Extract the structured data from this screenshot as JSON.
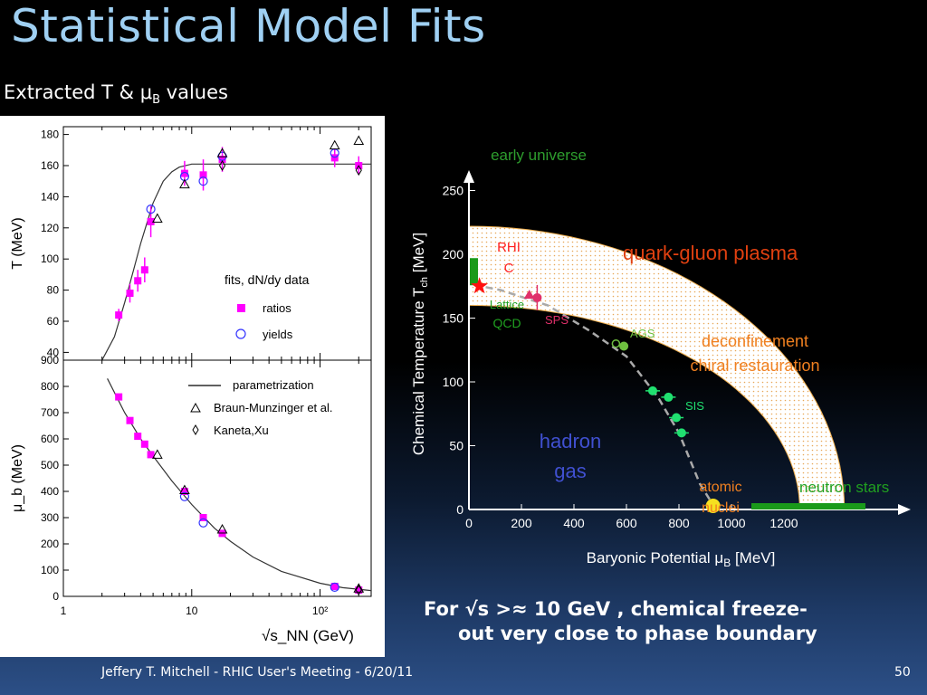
{
  "slide": {
    "title": "Statistical Model Fits",
    "subtitle_main": "Extracted T & μ",
    "subtitle_sub": "B",
    "subtitle_tail": " values",
    "conclusion_line1": "For √s >≈ 10 GeV , chemical freeze-",
    "conclusion_line2": "out very close to phase boundary",
    "footer": "Jeffery T. Mitchell - RHIC User's Meeting  - 6/20/11",
    "page_number": "50"
  },
  "chart_data": [
    {
      "type": "scatter",
      "xscale": "log",
      "xlim": [
        1,
        250
      ],
      "xlabel": "√s_NN (GeV)",
      "xticks": [
        {
          "v": 1,
          "label": "1"
        },
        {
          "v": 10,
          "label": "10"
        },
        {
          "v": 100,
          "label": "10²"
        }
      ],
      "top_panel": {
        "ylabel": "T (MeV)",
        "ylim": [
          35,
          185
        ],
        "yticks": [
          40,
          60,
          80,
          100,
          120,
          140,
          160,
          180
        ],
        "legend_title": "fits, dN/dy data",
        "series": [
          {
            "name": "ratios",
            "marker": "square",
            "color": "#ff00ff",
            "x": [
              2.7,
              3.3,
              3.8,
              4.3,
              4.8,
              8.8,
              12.3,
              17.3,
              130,
              200
            ],
            "y": [
              64,
              78,
              86,
              93,
              124,
              155,
              154,
              164,
              165,
              160
            ],
            "err": [
              4,
              6,
              7,
              8,
              10,
              8,
              10,
              8,
              6,
              6
            ]
          },
          {
            "name": "yields",
            "marker": "circle",
            "color": "#3333ff",
            "x": [
              4.8,
              8.8,
              12.3,
              17.3,
              130
            ],
            "y": [
              132,
              153,
              150,
              166,
              168
            ]
          },
          {
            "name": "Braun-Munzinger et al.",
            "marker": "triangle",
            "color": "#000000",
            "x": [
              5.4,
              8.8,
              17.3,
              130,
              200
            ],
            "y": [
              126,
              148,
              168,
              173,
              176
            ]
          },
          {
            "name": "Kaneta,Xu",
            "marker": "diamond",
            "color": "#000000",
            "x": [
              17.3,
              200
            ],
            "y": [
              160,
              157
            ]
          }
        ],
        "curve": {
          "x": [
            2.0,
            2.5,
            3.0,
            3.5,
            4.0,
            5.0,
            6.0,
            7.0,
            8.0,
            10,
            15,
            30,
            100,
            250
          ],
          "y": [
            35,
            50,
            72,
            92,
            110,
            136,
            150,
            156,
            159,
            161,
            161,
            161,
            161,
            161
          ]
        }
      },
      "bottom_panel": {
        "ylabel": "μ_b (MeV)",
        "ylim": [
          0,
          900
        ],
        "yticks": [
          0,
          100,
          200,
          300,
          400,
          500,
          600,
          700,
          800,
          900
        ],
        "legend_line": "parametrization",
        "series": [
          {
            "name": "ratios",
            "marker": "square",
            "color": "#ff00ff",
            "x": [
              2.7,
              3.3,
              3.8,
              4.3,
              4.8,
              8.8,
              12.3,
              17.3,
              130,
              200
            ],
            "y": [
              760,
              670,
              610,
              580,
              540,
              400,
              300,
              240,
              38,
              24
            ]
          },
          {
            "name": "yields",
            "marker": "circle",
            "color": "#3333ff",
            "x": [
              8.8,
              12.3,
              130
            ],
            "y": [
              380,
              280,
              35
            ]
          },
          {
            "name": "Braun-Munzinger et al.",
            "marker": "triangle",
            "color": "#000000",
            "x": [
              5.4,
              8.8,
              17.3,
              200
            ],
            "y": [
              540,
              405,
              255,
              30
            ]
          },
          {
            "name": "Kaneta,Xu",
            "marker": "diamond",
            "color": "#000000",
            "x": [
              200
            ],
            "y": [
              24
            ]
          }
        ],
        "curve": {
          "x": [
            2.2,
            3,
            4,
            5,
            7,
            10,
            15,
            20,
            30,
            50,
            100,
            150,
            250
          ],
          "y": [
            830,
            700,
            600,
            535,
            440,
            350,
            260,
            210,
            150,
            95,
            50,
            33,
            22
          ]
        }
      }
    },
    {
      "type": "scatter",
      "xlabel": "Baryonic Potential μ",
      "xlabel_sub": "B",
      "xlabel_tail": " [MeV]",
      "ylabel": "Chemical Temperature T",
      "ylabel_sub": "ch",
      "ylabel_tail": " [MeV]",
      "xlim": [
        0,
        1700
      ],
      "ylim": [
        0,
        260
      ],
      "xticks": [
        0,
        200,
        400,
        600,
        800,
        1000,
        1200
      ],
      "yticks": [
        0,
        50,
        100,
        150,
        200,
        250
      ],
      "labels": {
        "early_universe": "early universe",
        "rhic": "RHIC",
        "lattice": "Lattice QCD",
        "qgp": "quark-gluon plasma",
        "sps": "SPS",
        "ags": "AGS",
        "sis": "SIS",
        "deconf1": "deconfinement",
        "deconf2": "chiral restauration",
        "hadron": "hadron gas",
        "atomic": "atomic nuclei",
        "neutron": "neutron stars"
      },
      "freezeout_points": [
        {
          "x": 40,
          "y": 175,
          "label": "RHIC"
        },
        {
          "x": 230,
          "y": 168,
          "label": "SPS"
        },
        {
          "x": 260,
          "y": 166,
          "label": "SPS"
        },
        {
          "x": 560,
          "y": 130,
          "label": "AGS"
        },
        {
          "x": 590,
          "y": 128,
          "label": "AGS"
        },
        {
          "x": 700,
          "y": 93,
          "label": "SIS"
        },
        {
          "x": 760,
          "y": 88,
          "label": "SIS"
        },
        {
          "x": 790,
          "y": 72,
          "label": "SIS"
        },
        {
          "x": 810,
          "y": 60,
          "label": "SIS"
        }
      ],
      "phase_band": {
        "outer_T0": 222,
        "outer_muB_end": 1430,
        "inner_T0": 160,
        "inner_muB_end": 1260
      }
    }
  ]
}
